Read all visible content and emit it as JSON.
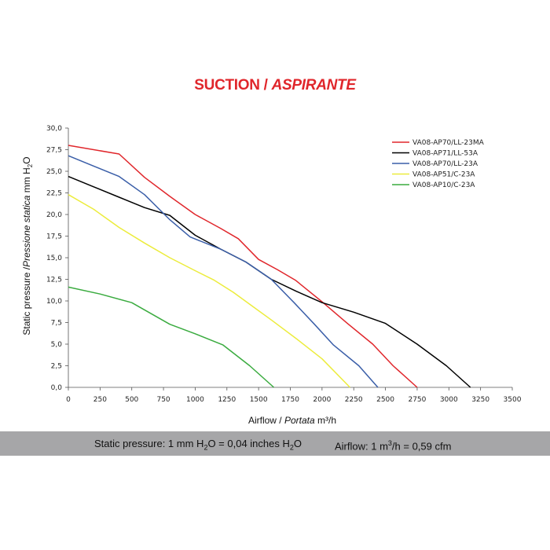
{
  "title": {
    "main": "SUCTION /",
    "italic": "ASPIRANTE"
  },
  "footer": {
    "pressure_label": "Static pressure: 1 mm H",
    "pressure_sub": "2",
    "pressure_mid": "O = 0,04 inches H",
    "pressure_sub2": "2",
    "pressure_end": "O",
    "airflow_label": "Airflow: 1 m",
    "airflow_sup": "3",
    "airflow_end": "/h = 0,59 cfm"
  },
  "chart_data": {
    "type": "line",
    "title": "SUCTION / ASPIRANTE",
    "xlabel": "Airflow / Portata m³/h",
    "xlabel_parts": {
      "main": "Airflow /",
      "italic": "Portata",
      "unit": "m³/h"
    },
    "ylabel": "Static pressure / Pressione statica mm H2O",
    "ylabel_parts": {
      "main": "Static pressure /",
      "italic": "Pressione statica",
      "unit": "mm  H",
      "sub": "2",
      "end": "O"
    },
    "xlim": [
      0,
      3500
    ],
    "ylim": [
      0,
      30
    ],
    "x_ticks": [
      "0",
      "250",
      "500",
      "750",
      "1000",
      "1250",
      "1500",
      "1750",
      "2000",
      "2250",
      "2500",
      "2750",
      "3000",
      "3250",
      "3500"
    ],
    "y_ticks": [
      "0,0",
      "2,5",
      "5,0",
      "7,5",
      "10,0",
      "12,5",
      "15,0",
      "17,5",
      "20,0",
      "22,5",
      "25,0",
      "27,5",
      "30,0"
    ],
    "grid": false,
    "legend_position": "top-right",
    "series": [
      {
        "name": "VA08-AP70/LL-23MA",
        "color": "#e0262b",
        "points": [
          [
            0,
            28.0
          ],
          [
            400,
            27.0
          ],
          [
            600,
            24.3
          ],
          [
            800,
            22.1
          ],
          [
            1000,
            20.0
          ],
          [
            1200,
            18.4
          ],
          [
            1340,
            17.2
          ],
          [
            1500,
            14.8
          ],
          [
            1650,
            13.6
          ],
          [
            1790,
            12.4
          ],
          [
            2000,
            9.9
          ],
          [
            2200,
            7.4
          ],
          [
            2400,
            5.0
          ],
          [
            2560,
            2.5
          ],
          [
            2750,
            0.0
          ]
        ]
      },
      {
        "name": "VA08-AP71/LL-53A",
        "color": "#000000",
        "points": [
          [
            0,
            24.4
          ],
          [
            200,
            23.2
          ],
          [
            400,
            22.0
          ],
          [
            600,
            20.8
          ],
          [
            800,
            19.9
          ],
          [
            1000,
            17.6
          ],
          [
            1200,
            16.0
          ],
          [
            1400,
            14.5
          ],
          [
            1600,
            12.5
          ],
          [
            1800,
            11.1
          ],
          [
            2000,
            9.8
          ],
          [
            2250,
            8.7
          ],
          [
            2500,
            7.4
          ],
          [
            2750,
            5.0
          ],
          [
            2980,
            2.5
          ],
          [
            3170,
            0.0
          ]
        ]
      },
      {
        "name": "VA08-AP70/LL-23A",
        "color": "#3a5ea8",
        "points": [
          [
            0,
            26.8
          ],
          [
            200,
            25.6
          ],
          [
            400,
            24.4
          ],
          [
            600,
            22.3
          ],
          [
            800,
            19.4
          ],
          [
            960,
            17.4
          ],
          [
            1200,
            16.0
          ],
          [
            1400,
            14.5
          ],
          [
            1600,
            12.5
          ],
          [
            1780,
            9.8
          ],
          [
            1940,
            7.3
          ],
          [
            2090,
            4.9
          ],
          [
            2290,
            2.5
          ],
          [
            2440,
            0.0
          ]
        ]
      },
      {
        "name": "VA08-AP51/C-23A",
        "color": "#ecec3c",
        "points": [
          [
            0,
            22.3
          ],
          [
            200,
            20.6
          ],
          [
            400,
            18.5
          ],
          [
            600,
            16.7
          ],
          [
            800,
            15.0
          ],
          [
            1000,
            13.5
          ],
          [
            1150,
            12.4
          ],
          [
            1300,
            11.0
          ],
          [
            1450,
            9.4
          ],
          [
            1600,
            7.8
          ],
          [
            1800,
            5.6
          ],
          [
            2000,
            3.3
          ],
          [
            2220,
            0.0
          ]
        ]
      },
      {
        "name": "VA08-AP10/C-23A",
        "color": "#3aab3f",
        "points": [
          [
            0,
            11.6
          ],
          [
            250,
            10.8
          ],
          [
            500,
            9.8
          ],
          [
            800,
            7.3
          ],
          [
            1000,
            6.2
          ],
          [
            1220,
            4.9
          ],
          [
            1430,
            2.5
          ],
          [
            1620,
            0.0
          ]
        ]
      }
    ]
  }
}
